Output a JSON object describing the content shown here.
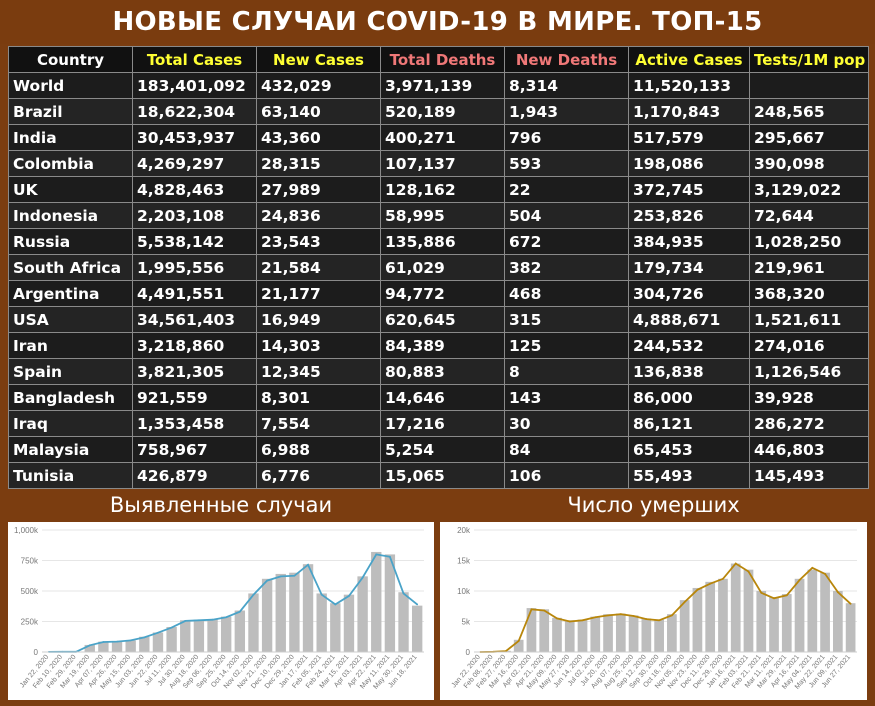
{
  "title": "НОВЫЕ СЛУЧАИ COVID-19 В МИРЕ. ТОП-15",
  "table": {
    "columns": [
      {
        "label": "Country",
        "color": "#ffffff"
      },
      {
        "label": "Total Cases",
        "color": "#ffff33"
      },
      {
        "label": "New Cases",
        "color": "#ffff33"
      },
      {
        "label": "Total Deaths",
        "color": "#f07878"
      },
      {
        "label": "New Deaths",
        "color": "#f07878"
      },
      {
        "label": "Active Cases",
        "color": "#ffff33"
      },
      {
        "label": "Tests/1M pop",
        "color": "#ffff33"
      }
    ],
    "rows": [
      [
        "World",
        "183,401,092",
        "432,029",
        "3,971,139",
        "8,314",
        "11,520,133",
        ""
      ],
      [
        "Brazil",
        "18,622,304",
        "63,140",
        "520,189",
        "1,943",
        "1,170,843",
        "248,565"
      ],
      [
        "India",
        "30,453,937",
        "43,360",
        "400,271",
        "796",
        "517,579",
        "295,667"
      ],
      [
        "Colombia",
        "4,269,297",
        "28,315",
        "107,137",
        "593",
        "198,086",
        "390,098"
      ],
      [
        "UK",
        "4,828,463",
        "27,989",
        "128,162",
        "22",
        "372,745",
        "3,129,022"
      ],
      [
        "Indonesia",
        "2,203,108",
        "24,836",
        "58,995",
        "504",
        "253,826",
        "72,644"
      ],
      [
        "Russia",
        "5,538,142",
        "23,543",
        "135,886",
        "672",
        "384,935",
        "1,028,250"
      ],
      [
        "South Africa",
        "1,995,556",
        "21,584",
        "61,029",
        "382",
        "179,734",
        "219,961"
      ],
      [
        "Argentina",
        "4,491,551",
        "21,177",
        "94,772",
        "468",
        "304,726",
        "368,320"
      ],
      [
        "USA",
        "34,561,403",
        "16,949",
        "620,645",
        "315",
        "4,888,671",
        "1,521,611"
      ],
      [
        "Iran",
        "3,218,860",
        "14,303",
        "84,389",
        "125",
        "244,532",
        "274,016"
      ],
      [
        "Spain",
        "3,821,305",
        "12,345",
        "80,883",
        "8",
        "136,838",
        "1,126,546"
      ],
      [
        "Bangladesh",
        "921,559",
        "8,301",
        "14,646",
        "143",
        "86,000",
        "39,928"
      ],
      [
        "Iraq",
        "1,353,458",
        "7,554",
        "17,216",
        "30",
        "86,121",
        "286,272"
      ],
      [
        "Malaysia",
        "758,967",
        "6,988",
        "5,254",
        "84",
        "65,453",
        "446,803"
      ],
      [
        "Tunisia",
        "426,879",
        "6,776",
        "15,065",
        "106",
        "55,493",
        "145,493"
      ]
    ]
  },
  "cases_section_title": "Выявленные случаи",
  "deaths_section_title": "Число умерших",
  "chart_data": [
    {
      "type": "bar",
      "title": "Выявленные случаи",
      "ylim": [
        0,
        1000000
      ],
      "yticks": [
        "0",
        "250k",
        "500k",
        "750k",
        "1,000k"
      ],
      "x": [
        "Jan 22, 2020",
        "Feb 10, 2020",
        "Feb 29, 2020",
        "Mar 19, 2020",
        "Apr 07, 2020",
        "Apr 26, 2020",
        "May 15, 2020",
        "Jun 03, 2020",
        "Jun 22, 2020",
        "Jul 11, 2020",
        "Jul 30, 2020",
        "Aug 18, 2020",
        "Sep 06, 2020",
        "Sep 25, 2020",
        "Oct 14, 2020",
        "Nov 02, 2020",
        "Nov 21, 2020",
        "Dec 10, 2020",
        "Dec 29, 2020",
        "Jan 17, 2021",
        "Feb 05, 2021",
        "Feb 24, 2021",
        "Mar 15, 2021",
        "Apr 03, 2021",
        "Apr 22, 2021",
        "May 11, 2021",
        "May 30, 2021",
        "Jun 18, 2021"
      ],
      "x_tick_labels": [
        "Jan 22, 2020",
        "Feb 10, 2020",
        "Feb 29, 2020",
        "Mar 19, 2020",
        "Apr 07, 2020",
        "Apr 26, 2020",
        "May 15, 2020",
        "Jun 03, 2020",
        "Jun 22, 2020",
        "Jul 11, 2020",
        "Jul 30, 2020",
        "Aug 18, 2020",
        "Sep 06, 2020",
        "Sep 25, 2020",
        "Oct 14, 2020",
        "Nov 02, 2020",
        "Nov 21, 2020",
        "Dec 10, 2020",
        "Dec 29, 2020",
        "Jan 17, 2021",
        "Feb 05, 2021",
        "Feb 24, 2021",
        "Mar 15, 2021",
        "Apr 03, 2021",
        "Apr 22, 2021",
        "May 11, 2021",
        "May 30, 2021",
        "Jun 18, 2021"
      ],
      "series": [
        {
          "kind": "bar",
          "color": "#bdbdbd",
          "values": [
            1000,
            2000,
            2000,
            58000,
            85000,
            88000,
            95000,
            125000,
            160000,
            205000,
            260000,
            265000,
            270000,
            290000,
            340000,
            480000,
            600000,
            640000,
            650000,
            720000,
            480000,
            400000,
            470000,
            620000,
            820000,
            800000,
            490000,
            380000
          ]
        },
        {
          "kind": "line",
          "color": "#4aa3c8",
          "values": [
            1000,
            2000,
            2000,
            55000,
            82000,
            85000,
            95000,
            120000,
            158000,
            200000,
            255000,
            260000,
            265000,
            285000,
            330000,
            470000,
            585000,
            620000,
            625000,
            715000,
            470000,
            390000,
            460000,
            610000,
            800000,
            780000,
            480000,
            390000
          ]
        }
      ]
    },
    {
      "type": "bar",
      "title": "Число умерших",
      "ylim": [
        0,
        20000
      ],
      "yticks": [
        "0",
        "5k",
        "10k",
        "15k",
        "20k"
      ],
      "x": [
        "Jan 22, 2020",
        "Feb 08, 2020",
        "Feb 27, 2020",
        "Mar 16, 2020",
        "Apr 02, 2020",
        "Apr 21, 2020",
        "May 09, 2020",
        "May 27, 2020",
        "Jun 14, 2020",
        "Jul 02, 2020",
        "Jul 20, 2020",
        "Aug 07, 2020",
        "Aug 25, 2020",
        "Sep 12, 2020",
        "Sep 30, 2020",
        "Oct 18, 2020",
        "Nov 05, 2020",
        "Nov 23, 2020",
        "Dec 11, 2020",
        "Dec 29, 2020",
        "Jan 16, 2021",
        "Feb 03, 2021",
        "Feb 21, 2021",
        "Mar 11, 2021",
        "Mar 29, 2021",
        "Apr 16, 2021",
        "May 04, 2021",
        "May 22, 2021",
        "Jun 09, 2021",
        "Jun 27, 2021"
      ],
      "x_tick_labels": [
        "Jan 22, 2020",
        "Feb 08, 2020",
        "Feb 27, 2020",
        "Mar 16, 2020",
        "Apr 02, 2020",
        "Apr 21, 2020",
        "May 09, 2020",
        "May 27, 2020",
        "Jun 14, 2020",
        "Jul 02, 2020",
        "Jul 20, 2020",
        "Aug 07, 2020",
        "Aug 25, 2020",
        "Sep 12, 2020",
        "Sep 30, 2020",
        "Oct 18, 2020",
        "Nov 05, 2020",
        "Nov 23, 2020",
        "Dec 11, 2020",
        "Dec 29, 2020",
        "Jan 16, 2021",
        "Feb 03, 2021",
        "Feb 21, 2021",
        "Mar 11, 2021",
        "Mar 29, 2021",
        "Apr 16, 2021",
        "May 04, 2021",
        "May 22, 2021",
        "Jun 09, 2021",
        "Jun 27, 2021"
      ],
      "series": [
        {
          "kind": "bar",
          "color": "#bdbdbd",
          "values": [
            0,
            50,
            200,
            2000,
            7200,
            7000,
            5600,
            5200,
            5300,
            5800,
            6200,
            6300,
            6000,
            5500,
            5300,
            6200,
            8500,
            10500,
            11500,
            12000,
            14500,
            13500,
            10000,
            9000,
            9500,
            12000,
            13500,
            13000,
            10000,
            8000
          ]
        },
        {
          "kind": "line",
          "color": "#b8860b",
          "values": [
            0,
            40,
            150,
            1800,
            7000,
            6800,
            5500,
            5000,
            5200,
            5700,
            6000,
            6200,
            5900,
            5400,
            5200,
            6000,
            8200,
            10200,
            11200,
            12000,
            14500,
            13200,
            9700,
            8800,
            9300,
            11800,
            13800,
            12800,
            9800,
            7900
          ]
        }
      ]
    }
  ]
}
